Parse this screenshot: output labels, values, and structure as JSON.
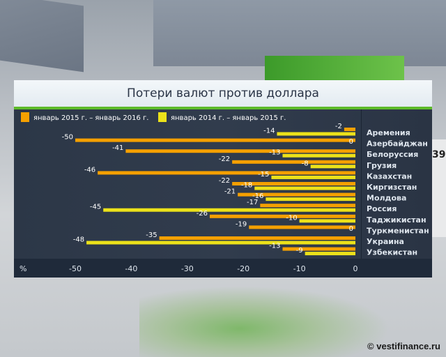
{
  "watermark": "© vestifinance.ru",
  "background_text": "39",
  "colors": {
    "series_2015_2016": "#f5a000",
    "series_2014_2015": "#ece21a",
    "accent_green": "#5dbb2a"
  },
  "chart_data": {
    "type": "bar",
    "orientation": "horizontal",
    "title": "Потери валют против доллара",
    "xlabel": "%",
    "ylabel": "",
    "xlim": [
      -50,
      0
    ],
    "xticks": [
      -50,
      -40,
      -30,
      -20,
      -10,
      0
    ],
    "xtick_labels": [
      "-50",
      "-40",
      "-30",
      "-20",
      "-10",
      "0"
    ],
    "axis_unit_label": "%",
    "legend_position": "top-left",
    "categories": [
      "Аремения",
      "Азербайджан",
      "Белоруссия",
      "Грузия",
      "Казахстан",
      "Киргизстан",
      "Молдова",
      "Россия",
      "Таджикистан",
      "Туркменистан",
      "Украина",
      "Узбекистан"
    ],
    "series": [
      {
        "name": "январь 2015 г. – январь 2016 г.",
        "color": "#f5a000",
        "values": [
          -2,
          -50,
          -41,
          -22,
          -46,
          -22,
          -21,
          -17,
          -26,
          -19,
          -35,
          -13
        ]
      },
      {
        "name": "январь 2014 г. – январь 2015 г.",
        "color": "#ece21a",
        "values": [
          -14,
          0,
          -13,
          -8,
          -15,
          -18,
          -16,
          -45,
          -10,
          0,
          -48,
          -9
        ]
      }
    ]
  }
}
